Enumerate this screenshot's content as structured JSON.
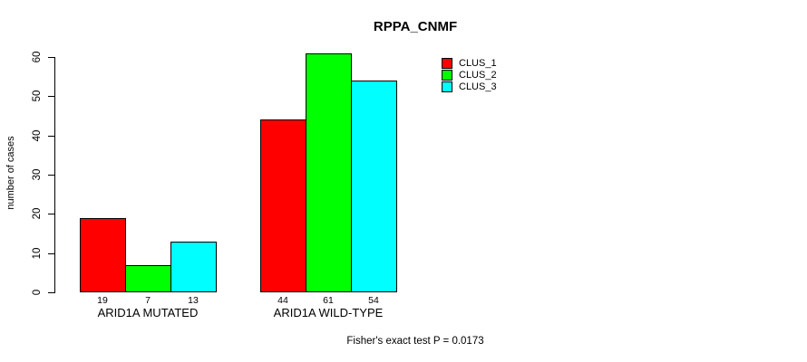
{
  "title": "RPPA_CNMF",
  "caption": "Fisher's exact test P = 0.0173",
  "y_axis": {
    "label": "number of cases",
    "ticks": [
      0,
      10,
      20,
      30,
      40,
      50,
      60
    ]
  },
  "chart_data": {
    "type": "bar",
    "title": "RPPA_CNMF",
    "categories": [
      "ARID1A MUTATED",
      "ARID1A WILD-TYPE"
    ],
    "series": [
      {
        "name": "CLUS_1",
        "color": "#ff0000",
        "values": [
          19,
          44
        ]
      },
      {
        "name": "CLUS_2",
        "color": "#00ff00",
        "values": [
          7,
          61
        ]
      },
      {
        "name": "CLUS_3",
        "color": "#00ffff",
        "values": [
          13,
          54
        ]
      }
    ],
    "xlabel": "",
    "ylabel": "number of cases",
    "ylim": [
      0,
      60
    ],
    "y_ticks": [
      0,
      10,
      20,
      30,
      40,
      50,
      60
    ],
    "bar_value_labels": [
      [
        19,
        7,
        13
      ],
      [
        44,
        61,
        54
      ]
    ],
    "annotation": "Fisher's exact test P = 0.0173",
    "legend_position": "top-right",
    "legend_entries": [
      "CLUS_1",
      "CLUS_2",
      "CLUS_3"
    ],
    "grid": false
  }
}
